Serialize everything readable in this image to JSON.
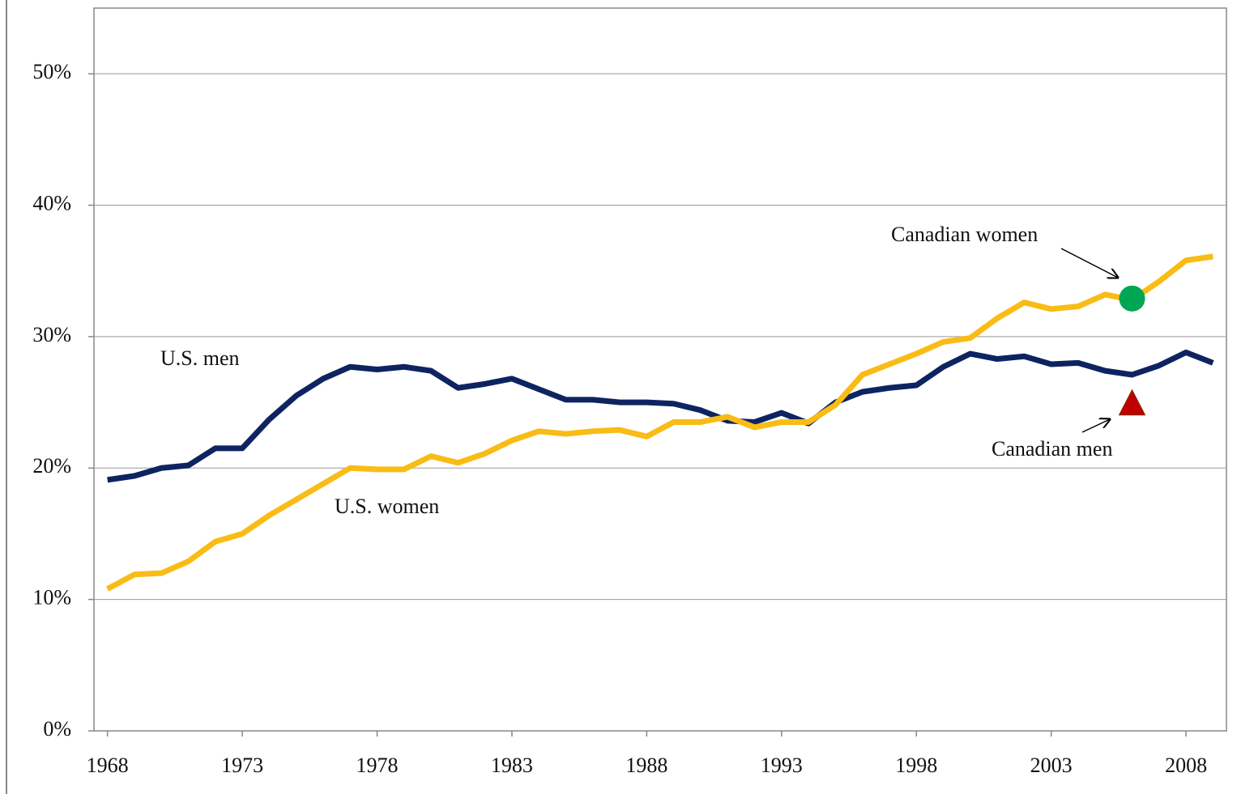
{
  "chart_data": {
    "type": "line",
    "x": [
      1968,
      1969,
      1970,
      1971,
      1972,
      1973,
      1974,
      1975,
      1976,
      1977,
      1978,
      1979,
      1980,
      1981,
      1982,
      1983,
      1984,
      1985,
      1986,
      1987,
      1988,
      1989,
      1990,
      1991,
      1992,
      1993,
      1994,
      1995,
      1996,
      1997,
      1998,
      1999,
      2000,
      2001,
      2002,
      2003,
      2004,
      2005,
      2006,
      2007,
      2008,
      2009
    ],
    "series": [
      {
        "name": "U.S. men",
        "color": "#0d2461",
        "values": [
          19.1,
          19.4,
          20.0,
          20.2,
          21.5,
          21.5,
          23.7,
          25.5,
          26.8,
          27.7,
          27.5,
          27.7,
          27.4,
          26.1,
          26.4,
          26.8,
          26.0,
          25.2,
          25.2,
          25.0,
          25.0,
          24.9,
          24.4,
          23.6,
          23.5,
          24.2,
          23.4,
          25.0,
          25.8,
          26.1,
          26.3,
          27.7,
          28.7,
          28.3,
          28.5,
          27.9,
          28.0,
          27.4,
          27.1,
          27.8,
          28.8,
          28.0
        ]
      },
      {
        "name": "U.S. women",
        "color": "#f9bc15",
        "values": [
          10.8,
          11.9,
          12.0,
          12.9,
          14.4,
          15.0,
          16.4,
          17.6,
          18.8,
          20.0,
          19.9,
          19.9,
          20.9,
          20.4,
          21.1,
          22.1,
          22.8,
          22.6,
          22.8,
          22.9,
          22.4,
          23.5,
          23.5,
          23.9,
          23.1,
          23.5,
          23.5,
          24.8,
          27.1,
          27.9,
          28.7,
          29.6,
          29.9,
          31.4,
          32.6,
          32.1,
          32.3,
          33.2,
          32.8,
          34.2,
          35.8,
          36.1
        ]
      }
    ],
    "markers": [
      {
        "name": "Canadian women",
        "x": 2006,
        "value": 32.9,
        "color": "#00a651",
        "shape": "circle"
      },
      {
        "name": "Canadian men",
        "x": 2006,
        "value": 24.9,
        "color": "#c00000",
        "shape": "triangle"
      }
    ],
    "xlim": [
      1967.5,
      2009.5
    ],
    "xticks": [
      1968,
      1973,
      1978,
      1983,
      1988,
      1993,
      1998,
      2003,
      2008
    ],
    "ylim": [
      0,
      55
    ],
    "yticks": [
      {
        "value": 0,
        "label": "0%"
      },
      {
        "value": 10,
        "label": "10%"
      },
      {
        "value": 20,
        "label": "20%"
      },
      {
        "value": 30,
        "label": "30%"
      },
      {
        "value": 40,
        "label": "40%"
      },
      {
        "value": 50,
        "label": "50%"
      }
    ],
    "grid": true
  }
}
